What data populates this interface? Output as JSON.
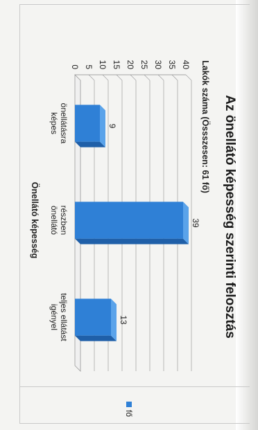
{
  "chart_data": {
    "type": "bar",
    "title": "Az önellátó képesség szerinti felosztás",
    "xlabel": "Önellátó képesség",
    "ylabel": "Lakók száma (Össszesen: 61 fő)",
    "categories": [
      "önellátásra képes",
      "részben önellátó",
      "teljes ellátást igényel"
    ],
    "category_lines": [
      [
        "önellátásra",
        "képes"
      ],
      [
        "részben",
        "önellátó"
      ],
      [
        "teljes ellátást",
        "igényel"
      ]
    ],
    "series": [
      {
        "name": "fő",
        "values": [
          9,
          39,
          13
        ]
      }
    ],
    "ylim": [
      0,
      40
    ],
    "yticks": [
      0,
      5,
      10,
      15,
      20,
      25,
      30,
      35,
      40
    ],
    "grid": true,
    "legend_position": "right",
    "three_d": true,
    "bar_color": "#2f80d6",
    "bar_side_color": "#1f5fa8",
    "bar_top_color": "#5aa3ea"
  }
}
